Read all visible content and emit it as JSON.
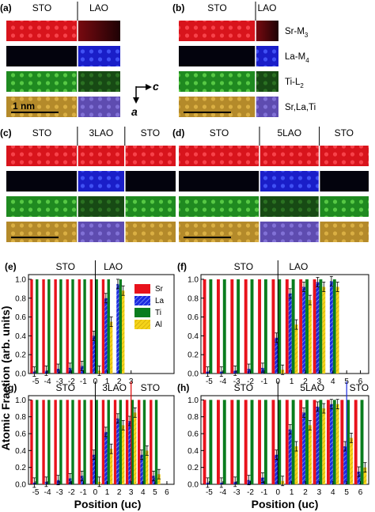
{
  "colors": {
    "sr": "#e8121c",
    "la": "#1b2be0",
    "ti": "#0a7d1e",
    "al": "#f4d31a",
    "al_hatch": "#c9a400",
    "la_hatch": "#9fb6ff"
  },
  "legend": [
    "Sr",
    "La",
    "Ti",
    "Al"
  ],
  "map_panels": [
    {
      "id": "a",
      "label": "(a)",
      "headers": [
        "STO",
        "LAO"
      ],
      "scale_label": "1 nm",
      "channels": [
        "Sr-M",
        "La-M",
        "Ti-L",
        "Sr,La,Ti"
      ],
      "channel_subs": [
        "3",
        "4",
        "2",
        ""
      ]
    },
    {
      "id": "b",
      "label": "(b)",
      "headers": [
        "STO",
        "LAO"
      ]
    },
    {
      "id": "c",
      "label": "(c)",
      "headers": [
        "STO",
        "3LAO",
        "STO"
      ]
    },
    {
      "id": "d",
      "label": "(d)",
      "headers": [
        "STO",
        "5LAO",
        "STO"
      ]
    }
  ],
  "axis_arrows": {
    "horizontal": "c",
    "vertical": "a"
  },
  "y_axis_label": "Atomic Fraction (arb. units)",
  "x_axis_label": "Position (uc)",
  "chart_data": [
    {
      "id": "e",
      "label": "(e)",
      "type": "bar",
      "headers": [
        "STO",
        "LAO"
      ],
      "x": [
        -5,
        -4,
        -3,
        -2,
        -1,
        0,
        1,
        2,
        3
      ],
      "xticks": [
        "-5",
        "-4",
        "-3",
        "-2",
        "-1",
        "0",
        "1",
        "2",
        "3"
      ],
      "yticks": [
        "0.0",
        "0.2",
        "0.4",
        "0.6",
        "0.8",
        "1.0"
      ],
      "ylim": [
        0,
        1.05
      ],
      "series": [
        {
          "name": "Sr",
          "values": [
            1,
            1,
            1,
            1,
            1,
            1,
            1,
            null,
            null
          ]
        },
        {
          "name": "La",
          "values": [
            0.02,
            0.03,
            0.05,
            0.06,
            0.08,
            0.4,
            0.8,
            0.95,
            null
          ]
        },
        {
          "name": "Ti",
          "values": [
            1,
            1,
            1,
            1,
            1,
            1,
            1,
            1,
            null
          ]
        },
        {
          "name": "Al",
          "values": [
            null,
            null,
            null,
            null,
            null,
            0.03,
            0.55,
            0.88,
            null
          ]
        }
      ]
    },
    {
      "id": "f",
      "label": "(f)",
      "type": "bar",
      "headers": [
        "STO",
        "LAO"
      ],
      "x": [
        -5,
        -4,
        -3,
        -2,
        -1,
        0,
        1,
        2,
        3,
        4,
        5,
        6
      ],
      "xticks": [
        "-5",
        "-4",
        "-3",
        "-2",
        "-1",
        "0",
        "1",
        "2",
        "3",
        "4",
        "5",
        "6"
      ],
      "yticks": [
        "0.0",
        "0.2",
        "0.4",
        "0.6",
        "0.8",
        "1.0"
      ],
      "ylim": [
        0,
        1.05
      ],
      "series": [
        {
          "name": "Sr",
          "values": [
            1,
            1,
            1,
            1,
            1,
            1,
            1,
            1,
            1,
            null,
            null,
            null
          ]
        },
        {
          "name": "La",
          "values": [
            0.02,
            0.02,
            0.03,
            0.05,
            0.06,
            0.38,
            0.85,
            0.92,
            0.97,
            0.98,
            null,
            null
          ]
        },
        {
          "name": "Ti",
          "values": [
            1,
            1,
            1,
            1,
            1,
            1,
            1,
            1,
            1,
            1,
            null,
            null
          ]
        },
        {
          "name": "Al",
          "values": [
            null,
            null,
            null,
            null,
            null,
            0.04,
            0.52,
            0.78,
            0.92,
            0.92,
            null,
            null
          ]
        }
      ]
    },
    {
      "id": "g",
      "label": "(g)",
      "type": "bar",
      "headers": [
        "STO",
        "3LAO",
        "STO"
      ],
      "x": [
        -5,
        -4,
        -3,
        -2,
        -1,
        0,
        1,
        2,
        3,
        4,
        5,
        6
      ],
      "xticks": [
        "-5",
        "-4",
        "-3",
        "-2",
        "-1",
        "0",
        "1",
        "2",
        "3",
        "4",
        "5",
        "6"
      ],
      "yticks": [
        "0.0",
        "0.2",
        "0.4",
        "0.6",
        "0.8",
        "1.0"
      ],
      "ylim": [
        0,
        1.05
      ],
      "series": [
        {
          "name": "Sr",
          "values": [
            1,
            1,
            1,
            1,
            1,
            1,
            1,
            1,
            1,
            1,
            1,
            null
          ]
        },
        {
          "name": "La",
          "values": [
            0.02,
            0.03,
            0.05,
            0.07,
            0.1,
            0.35,
            0.62,
            0.78,
            0.75,
            0.35,
            0.1,
            null
          ]
        },
        {
          "name": "Ti",
          "values": [
            1,
            1,
            1,
            1,
            1,
            1,
            1,
            1,
            1,
            1,
            1,
            null
          ]
        },
        {
          "name": "Al",
          "values": [
            null,
            null,
            null,
            null,
            null,
            0.03,
            0.42,
            0.7,
            0.85,
            0.4,
            0.12,
            null
          ]
        }
      ]
    },
    {
      "id": "h",
      "label": "(h)",
      "type": "bar",
      "headers": [
        "STO",
        "5LAO",
        "STO"
      ],
      "x": [
        -5,
        -4,
        -3,
        -2,
        -1,
        0,
        1,
        2,
        3,
        4,
        5,
        6
      ],
      "xticks": [
        "-5",
        "-4",
        "-3",
        "-2",
        "-1",
        "0",
        "1",
        "2",
        "3",
        "4",
        "5",
        "6"
      ],
      "yticks": [
        "0.0",
        "0.2",
        "0.4",
        "0.6",
        "0.8",
        "1.0"
      ],
      "ylim": [
        0,
        1.05
      ],
      "series": [
        {
          "name": "Sr",
          "values": [
            1,
            1,
            1,
            1,
            1,
            1,
            1,
            1,
            1,
            1,
            1,
            1
          ]
        },
        {
          "name": "La",
          "values": [
            0.02,
            0.02,
            0.03,
            0.05,
            0.08,
            0.35,
            0.65,
            0.85,
            0.92,
            0.95,
            0.45,
            0.15
          ]
        },
        {
          "name": "Ti",
          "values": [
            1,
            1,
            1,
            1,
            1,
            1,
            1,
            1,
            1,
            1,
            1,
            1
          ]
        },
        {
          "name": "Al",
          "values": [
            null,
            null,
            null,
            null,
            null,
            0.04,
            0.45,
            0.7,
            0.9,
            0.95,
            0.55,
            0.2
          ]
        }
      ]
    }
  ]
}
